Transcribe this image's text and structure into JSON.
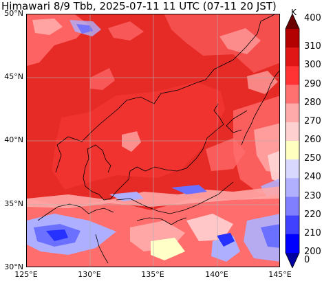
{
  "title": "Himawari 8/9 Tbb, 2025-07-11 11 UTC (07-11 20 JST)",
  "latitude_labels": [
    "50°N",
    "45°N",
    "40°N",
    "35°N",
    "30°N"
  ],
  "longitude_labels": [
    "125°E",
    "130°E",
    "135°E",
    "140°E",
    "145°E"
  ],
  "colorbar": {
    "unit": "K",
    "labels": [
      "400",
      "310",
      "300",
      "290",
      "280",
      "270",
      "260",
      "250",
      "240",
      "230",
      "220",
      "210",
      "200",
      "0"
    ],
    "colors": [
      "#6b0000",
      "#b30000",
      "#e01515",
      "#ff3333",
      "#ff7070",
      "#ffaaaa",
      "#ffd0d0",
      "#ffffc0",
      "#d8d8ff",
      "#b0b0ff",
      "#8080ff",
      "#4040ff",
      "#0000ff",
      "#0000a0"
    ]
  },
  "map_palette": {
    "base": "#e62b26",
    "warm_land": "#f0332f",
    "mid_cloud": "#ff6d6d",
    "light_cloud": "#ffa7a7",
    "pale": "#ffd7d7",
    "yellow": "#ffffc8",
    "blue_light": "#aeb0ff",
    "blue_mid": "#6b70ff",
    "blue_dark": "#2630ff"
  }
}
